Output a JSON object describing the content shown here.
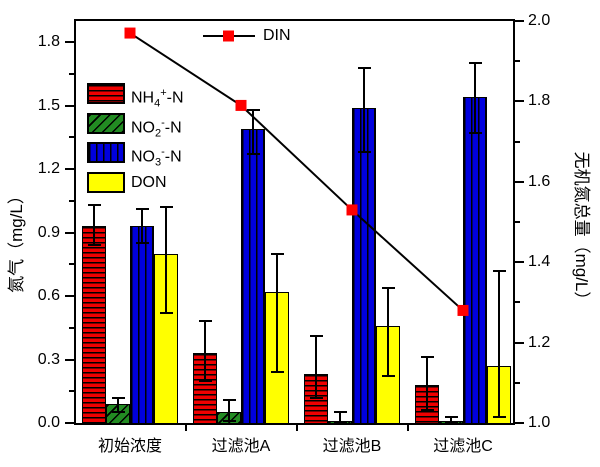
{
  "chart_data": {
    "type": "bar",
    "title": "",
    "categories": [
      "初始浓度",
      "过滤池A",
      "过滤池B",
      "过滤池C"
    ],
    "bar_series": [
      {
        "key": "nh4",
        "name": "NH4+-N",
        "label_parts": {
          "pre": "NH",
          "sub": "4",
          "sup": "+",
          "post": "-N"
        },
        "color": "#ee0000",
        "hatch": "horizontal",
        "values": [
          0.93,
          0.33,
          0.23,
          0.18
        ],
        "err_low": [
          0.84,
          0.2,
          0.12,
          0.06
        ],
        "err_high": [
          1.03,
          0.48,
          0.41,
          0.31
        ]
      },
      {
        "key": "no2",
        "name": "NO2--N",
        "label_parts": {
          "pre": "NO",
          "sub": "2",
          "sup": "-",
          "post": "-N"
        },
        "color": "#228B22",
        "hatch": "diagonal",
        "values": [
          0.09,
          0.05,
          0.01,
          0.01
        ],
        "err_low": [
          0.05,
          0.01,
          0.0,
          0.0
        ],
        "err_high": [
          0.12,
          0.11,
          0.05,
          0.03
        ]
      },
      {
        "key": "no3",
        "name": "NO3--N",
        "label_parts": {
          "pre": "NO",
          "sub": "3",
          "sup": "-",
          "post": "-N"
        },
        "color": "#0000dd",
        "hatch": "vertical",
        "values": [
          0.93,
          1.39,
          1.49,
          1.54
        ],
        "err_low": [
          0.85,
          1.27,
          1.28,
          1.37
        ],
        "err_high": [
          1.01,
          1.48,
          1.68,
          1.7
        ]
      },
      {
        "key": "don",
        "name": "DON",
        "label_parts": {
          "pre": "DON",
          "sub": "",
          "sup": "",
          "post": ""
        },
        "color": "#ffff00",
        "hatch": "none",
        "values": [
          0.8,
          0.62,
          0.46,
          0.27
        ],
        "err_low": [
          0.52,
          0.24,
          0.22,
          0.03
        ],
        "err_high": [
          1.02,
          0.8,
          0.64,
          0.72
        ]
      }
    ],
    "line_series": {
      "name": "DIN",
      "axis": "right",
      "line_color": "#000000",
      "marker": "square",
      "marker_color": "#ff0000",
      "values": [
        1.97,
        1.79,
        1.53,
        1.28
      ]
    },
    "left_axis": {
      "label": "氮气（mg/L）",
      "min": 0.0,
      "max": 1.9,
      "major_ticks": [
        0.0,
        0.3,
        0.6,
        0.9,
        1.2,
        1.5,
        1.8
      ],
      "minor_ticks": [
        0.15,
        0.45,
        0.75,
        1.05,
        1.35,
        1.65
      ]
    },
    "right_axis": {
      "label": "无机氮总量（mg/L）",
      "min": 1.0,
      "max": 2.0,
      "major_ticks": [
        1.0,
        1.2,
        1.4,
        1.6,
        1.8,
        2.0
      ],
      "minor_ticks": [
        1.1,
        1.3,
        1.5,
        1.7,
        1.9
      ]
    },
    "grid": false,
    "legend_position": "upper-left-inside"
  },
  "colors": {
    "axis": "#000000",
    "background": "#ffffff",
    "errorbar": "#000000"
  }
}
